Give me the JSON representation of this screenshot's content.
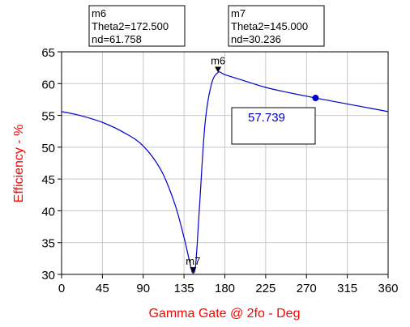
{
  "chart_data": {
    "type": "line",
    "xlabel": "Gamma Gate @ 2fo - Deg",
    "ylabel": "Efficiency - %",
    "xlim": [
      0,
      360
    ],
    "ylim": [
      30,
      65
    ],
    "xticks": [
      "0",
      "45",
      "90",
      "135",
      "180",
      "225",
      "270",
      "315",
      "360"
    ],
    "yticks": [
      "30",
      "35",
      "40",
      "45",
      "50",
      "55",
      "60",
      "65"
    ],
    "grid": true,
    "line_color": "#0000cc",
    "axis_label_color": "#ff0000",
    "series": [
      {
        "x": [
          0,
          20,
          45,
          70,
          90,
          110,
          125,
          135,
          142,
          145,
          148,
          152,
          158,
          165,
          172.5,
          180,
          200,
          225,
          250,
          280,
          300,
          330,
          360
        ],
        "y": [
          55.6,
          55.0,
          53.9,
          52.2,
          50.2,
          46.3,
          41.0,
          35.8,
          31.5,
          30.2,
          31.8,
          40.5,
          53.5,
          59.8,
          61.758,
          61.4,
          60.5,
          59.4,
          58.6,
          57.739,
          57.2,
          56.4,
          55.6
        ]
      }
    ],
    "markers": [
      {
        "name": "m6",
        "x": 172.5,
        "y": 61.758,
        "lines": [
          "m6",
          "Theta2=172.500",
          "nd=61.758"
        ]
      },
      {
        "name": "m7",
        "x": 145,
        "y": 30.236,
        "lines": [
          "m7",
          "Theta2=145.000",
          "nd=30.236"
        ]
      }
    ],
    "cursor_point": {
      "x": 280,
      "y": 57.739
    },
    "readout_value": "57.739"
  }
}
